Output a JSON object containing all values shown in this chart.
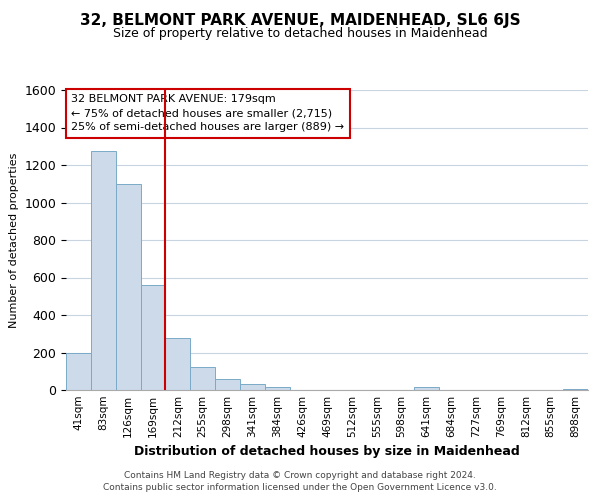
{
  "title": "32, BELMONT PARK AVENUE, MAIDENHEAD, SL6 6JS",
  "subtitle": "Size of property relative to detached houses in Maidenhead",
  "xlabel": "Distribution of detached houses by size in Maidenhead",
  "ylabel": "Number of detached properties",
  "bar_labels": [
    "41sqm",
    "83sqm",
    "126sqm",
    "169sqm",
    "212sqm",
    "255sqm",
    "298sqm",
    "341sqm",
    "384sqm",
    "426sqm",
    "469sqm",
    "512sqm",
    "555sqm",
    "598sqm",
    "641sqm",
    "684sqm",
    "727sqm",
    "769sqm",
    "812sqm",
    "855sqm",
    "898sqm"
  ],
  "bar_values": [
    200,
    1275,
    1100,
    560,
    275,
    125,
    60,
    30,
    15,
    0,
    0,
    0,
    0,
    0,
    15,
    0,
    0,
    0,
    0,
    0,
    8
  ],
  "bar_color": "#ccdaea",
  "bar_edge_color": "#7aaac8",
  "vline_x_idx": 3,
  "vline_color": "#cc0000",
  "ylim": [
    0,
    1600
  ],
  "annotation_title": "32 BELMONT PARK AVENUE: 179sqm",
  "annotation_line1": "← 75% of detached houses are smaller (2,715)",
  "annotation_line2": "25% of semi-detached houses are larger (889) →",
  "annotation_box_color": "#ffffff",
  "annotation_box_edge": "#cc0000",
  "footer_line1": "Contains HM Land Registry data © Crown copyright and database right 2024.",
  "footer_line2": "Contains public sector information licensed under the Open Government Licence v3.0.",
  "background_color": "#ffffff",
  "grid_color": "#c8d4e0",
  "title_fontsize": 11,
  "subtitle_fontsize": 9,
  "ylabel_fontsize": 8,
  "xlabel_fontsize": 9,
  "annotation_fontsize": 8,
  "tick_fontsize": 7.5,
  "footer_fontsize": 6.5
}
